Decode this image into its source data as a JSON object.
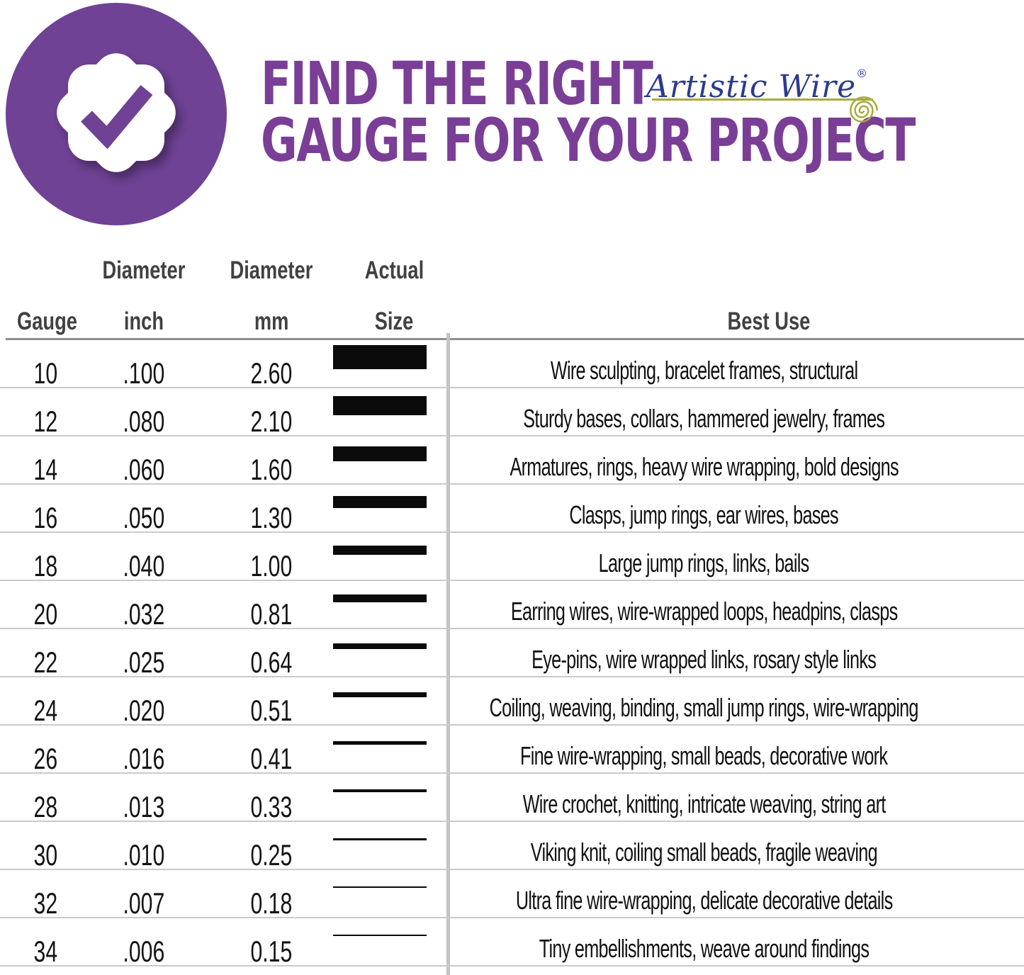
{
  "header": {
    "title_line1": "FIND THE RIGHT",
    "title_line2": "GAUGE FOR YOUR PROJECT",
    "brand_name": "Artistic Wire",
    "brand_registered": "®",
    "badge_icon": "check-seal-icon",
    "spiral_icon": "wire-spiral-icon"
  },
  "colors": {
    "title_purple": "#7a3e96",
    "badge_purple": "#6f4295",
    "brand_navy": "#2c3b8c",
    "brand_olive": "#a9a93e",
    "header_gray": "#414141",
    "grid_line_gray": "#cacaca",
    "divider_gray": "#c3c3c3",
    "bar_black": "#0b0b0b"
  },
  "table": {
    "header_top": {
      "diameter_inch": "Diameter",
      "diameter_mm": "Diameter",
      "actual": "Actual"
    },
    "header_bottom": {
      "gauge": "Gauge",
      "inch": "inch",
      "mm": "mm",
      "size": "Size",
      "best_use": "Best Use"
    },
    "rows": [
      {
        "gauge": "10",
        "inch": ".100",
        "mm": "2.60",
        "best_use": "Wire sculpting, bracelet frames, structural"
      },
      {
        "gauge": "12",
        "inch": ".080",
        "mm": "2.10",
        "best_use": "Sturdy bases, collars, hammered jewelry, frames"
      },
      {
        "gauge": "14",
        "inch": ".060",
        "mm": "1.60",
        "best_use": "Armatures, rings, heavy wire wrapping, bold designs"
      },
      {
        "gauge": "16",
        "inch": ".050",
        "mm": "1.30",
        "best_use": "Clasps, jump rings, ear wires, bases"
      },
      {
        "gauge": "18",
        "inch": ".040",
        "mm": "1.00",
        "best_use": "Large jump rings, links, bails"
      },
      {
        "gauge": "20",
        "inch": ".032",
        "mm": "0.81",
        "best_use": "Earring wires, wire-wrapped loops, headpins, clasps"
      },
      {
        "gauge": "22",
        "inch": ".025",
        "mm": "0.64",
        "best_use": "Eye-pins, wire wrapped links, rosary style links"
      },
      {
        "gauge": "24",
        "inch": ".020",
        "mm": "0.51",
        "best_use": "Coiling, weaving, binding, small jump rings, wire-wrapping"
      },
      {
        "gauge": "26",
        "inch": ".016",
        "mm": "0.41",
        "best_use": "Fine wire-wrapping, small beads, decorative work"
      },
      {
        "gauge": "28",
        "inch": ".013",
        "mm": "0.33",
        "best_use": "Wire crochet, knitting, intricate weaving, string art"
      },
      {
        "gauge": "30",
        "inch": ".010",
        "mm": "0.25",
        "best_use": "Viking knit, coiling small beads, fragile weaving"
      },
      {
        "gauge": "32",
        "inch": ".007",
        "mm": "0.18",
        "best_use": "Ultra fine wire-wrapping, delicate decorative details"
      },
      {
        "gauge": "34",
        "inch": ".006",
        "mm": "0.15",
        "best_use": "Tiny embellishments, weave around findings"
      }
    ]
  },
  "chart_data": {
    "type": "table",
    "title": "Find the Right Gauge for Your Project",
    "columns": [
      "Gauge",
      "Diameter inch",
      "Diameter mm",
      "Actual Size",
      "Best Use"
    ],
    "gauges": [
      10,
      12,
      14,
      16,
      18,
      20,
      22,
      24,
      26,
      28,
      30,
      32,
      34
    ],
    "diameter_inch": [
      0.1,
      0.08,
      0.06,
      0.05,
      0.04,
      0.032,
      0.025,
      0.02,
      0.016,
      0.013,
      0.01,
      0.007,
      0.006
    ],
    "diameter_mm": [
      2.6,
      2.1,
      1.6,
      1.3,
      1.0,
      0.81,
      0.64,
      0.51,
      0.41,
      0.33,
      0.25,
      0.18,
      0.15
    ],
    "best_use": [
      "Wire sculpting, bracelet frames, structural",
      "Sturdy bases, collars, hammered jewelry, frames",
      "Armatures, rings, heavy wire wrapping, bold designs",
      "Clasps, jump rings, ear wires, bases",
      "Large jump rings, links, bails",
      "Earring wires, wire-wrapped loops, headpins, clasps",
      "Eye-pins, wire wrapped links, rosary style links",
      "Coiling, weaving, binding, small jump rings, wire-wrapping",
      "Fine wire-wrapping, small beads, decorative work",
      "Wire crochet, knitting, intricate weaving, string art",
      "Viking knit, coiling small beads, fragile weaving",
      "Ultra fine wire-wrapping, delicate decorative details",
      "Tiny embellishments, weave around findings"
    ],
    "bar_semantics": "black bar thickness shows actual wire diameter in mm"
  }
}
